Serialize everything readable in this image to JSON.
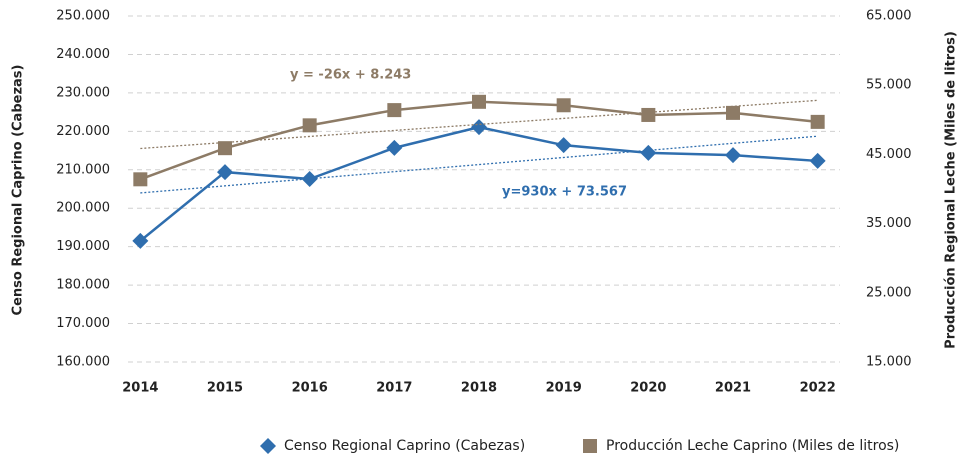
{
  "chart_data": {
    "type": "line",
    "categories": [
      "2014",
      "2015",
      "2016",
      "2017",
      "2018",
      "2019",
      "2020",
      "2021",
      "2022"
    ],
    "series": [
      {
        "name": "Censo Regional Caprino (Cabezas)",
        "color": "#2f6eae",
        "axis": "y",
        "marker": "diamond",
        "values": [
          191500,
          209400,
          207600,
          215700,
          221100,
          216400,
          214400,
          213800,
          212300
        ]
      },
      {
        "name": "Producción Leche Caprino (Miles de litros)",
        "color": "#8d7b66",
        "axis": "y2",
        "marker": "square",
        "values": [
          41400,
          45900,
          49200,
          51400,
          52600,
          52100,
          50700,
          51000,
          49700
        ]
      }
    ],
    "ylabel": "Censo Regional Caprino (Cabezas)",
    "y2label": "Producción Regional Leche (Miles de litros)",
    "ylim": [
      160000,
      250000
    ],
    "yticks": [
      {
        "value": 160000,
        "label": "160.000"
      },
      {
        "value": 170000,
        "label": "170.000"
      },
      {
        "value": 180000,
        "label": "180.000"
      },
      {
        "value": 190000,
        "label": "190.000"
      },
      {
        "value": 200000,
        "label": "200.000"
      },
      {
        "value": 210000,
        "label": "210.000"
      },
      {
        "value": 220000,
        "label": "220.000"
      },
      {
        "value": 230000,
        "label": "230.000"
      },
      {
        "value": 240000,
        "label": "240.000"
      },
      {
        "value": 250000,
        "label": "250.000"
      }
    ],
    "y2lim": [
      15000,
      65000
    ],
    "y2ticks": [
      {
        "value": 15000,
        "label": "15.000"
      },
      {
        "value": 25000,
        "label": "25.000"
      },
      {
        "value": 35000,
        "label": "35.000"
      },
      {
        "value": 45000,
        "label": "45.000"
      },
      {
        "value": 55000,
        "label": "55.000"
      },
      {
        "value": 65000,
        "label": "65.000"
      }
    ],
    "annotations": [
      "y = -26x + 8.243",
      "y=930x + 73.567"
    ],
    "grid": true,
    "legend": "bottom"
  }
}
